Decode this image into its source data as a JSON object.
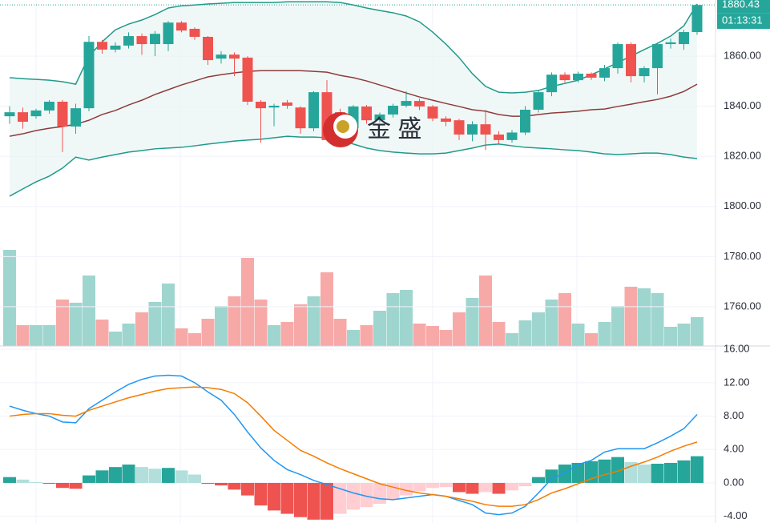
{
  "chart_data": [
    {
      "type": "candlestick",
      "ylim": [
        1744.3,
        1882.4
      ],
      "yticks": [
        {
          "value": 1760,
          "label": "1760.00"
        },
        {
          "value": 1780,
          "label": "1780.00"
        },
        {
          "value": 1800,
          "label": "1800.00"
        },
        {
          "value": 1820,
          "label": "1820.00"
        },
        {
          "value": 1840,
          "label": "1840.00"
        },
        {
          "value": 1860,
          "label": "1860.00"
        }
      ],
      "grid": true,
      "up_color": "#26a69a",
      "down_color": "#ef5350",
      "last_price": 1880.43,
      "countdown": "01:13:31",
      "watermark": "金 盛",
      "candles": {
        "open": [
          1836.0,
          1837.6,
          1836.0,
          1838.3,
          1841.8,
          1831.9,
          1839.2,
          1865.7,
          1862.6,
          1864.2,
          1868.0,
          1864.8,
          1864.8,
          1873.4,
          1870.9,
          1867.7,
          1859.0,
          1860.6,
          1859.4,
          1841.8,
          1839.5,
          1841.5,
          1839.5,
          1831.2,
          1845.6,
          1837.6,
          1831.2,
          1839.9,
          1834.4,
          1836.7,
          1840.2,
          1842.1,
          1839.9,
          1835.1,
          1834.4,
          1828.7,
          1832.8,
          1828.7,
          1826.5,
          1829.5,
          1838.6,
          1845.6,
          1852.6,
          1850.4,
          1853.0,
          1851.4,
          1855.2,
          1864.8,
          1852.0,
          1855.2,
          1864.8,
          1864.8,
          1869.6
        ],
        "high": [
          1840.0,
          1839.5,
          1839.0,
          1842.5,
          1842.5,
          1841.0,
          1868.0,
          1866.5,
          1865.5,
          1869.5,
          1869.0,
          1870.0,
          1874.0,
          1874.0,
          1871.5,
          1868.0,
          1862.0,
          1861.5,
          1860.0,
          1842.5,
          1841.0,
          1842.5,
          1840.0,
          1846.0,
          1850.4,
          1839.0,
          1840.5,
          1840.5,
          1837.5,
          1841.0,
          1846.0,
          1843.0,
          1840.5,
          1836.0,
          1835.0,
          1834.0,
          1838.6,
          1830.0,
          1830.5,
          1840.0,
          1846.5,
          1853.5,
          1853.5,
          1853.8,
          1853.5,
          1856.5,
          1865.5,
          1865.5,
          1856.0,
          1865.5,
          1867.0,
          1870.5,
          1880.6
        ],
        "low": [
          1833.0,
          1831.0,
          1835.0,
          1837.0,
          1821.7,
          1829.0,
          1838.0,
          1861.0,
          1861.5,
          1863.0,
          1860.5,
          1860.0,
          1862.0,
          1869.5,
          1866.5,
          1856.5,
          1857.0,
          1852.0,
          1840.5,
          1825.5,
          1832.0,
          1839.0,
          1829.0,
          1830.0,
          1826.0,
          1826.0,
          1830.0,
          1833.0,
          1833.5,
          1835.5,
          1839.5,
          1838.5,
          1834.0,
          1832.0,
          1826.5,
          1826.0,
          1822.5,
          1825.0,
          1825.5,
          1828.5,
          1837.5,
          1844.0,
          1849.5,
          1849.5,
          1850.5,
          1850.0,
          1853.0,
          1849.5,
          1849.5,
          1844.7,
          1863.0,
          1862.5,
          1868.5
        ],
        "close": [
          1837.6,
          1833.8,
          1838.3,
          1841.8,
          1831.9,
          1839.2,
          1865.7,
          1862.6,
          1864.2,
          1868.0,
          1864.8,
          1868.9,
          1873.4,
          1870.2,
          1867.7,
          1858.4,
          1860.6,
          1859.0,
          1841.8,
          1839.2,
          1840.2,
          1840.2,
          1831.2,
          1845.6,
          1826.5,
          1826.5,
          1839.9,
          1834.4,
          1836.7,
          1840.2,
          1842.1,
          1839.9,
          1835.1,
          1833.8,
          1828.7,
          1832.8,
          1828.7,
          1826.5,
          1829.5,
          1838.6,
          1845.6,
          1852.6,
          1850.4,
          1853.0,
          1851.4,
          1855.2,
          1864.8,
          1852.0,
          1855.2,
          1864.8,
          1865.5,
          1869.6,
          1880.4
        ]
      },
      "bands": {
        "color": "#1f9a8b",
        "middle_color": "#8e3b3b",
        "fill": "#e6f4f2",
        "upper": [
          1851.4,
          1851.0,
          1850.7,
          1850.4,
          1849.8,
          1848.8,
          1860.0,
          1865.7,
          1870.5,
          1872.8,
          1874.4,
          1876.6,
          1879.2,
          1880.1,
          1880.4,
          1880.8,
          1881.1,
          1881.4,
          1881.4,
          1881.4,
          1881.4,
          1881.7,
          1881.7,
          1881.7,
          1881.7,
          1881.4,
          1880.4,
          1879.2,
          1878.2,
          1877.3,
          1876.0,
          1873.7,
          1869.6,
          1864.8,
          1859.4,
          1853.0,
          1847.9,
          1845.6,
          1845.3,
          1845.6,
          1846.3,
          1847.9,
          1849.1,
          1850.4,
          1852.6,
          1854.9,
          1857.4,
          1860.0,
          1862.6,
          1865.1,
          1868.0,
          1872.1,
          1880.8
        ],
        "middle": [
          1828.0,
          1829.0,
          1830.3,
          1831.2,
          1831.9,
          1832.8,
          1834.4,
          1836.7,
          1838.3,
          1840.5,
          1842.4,
          1844.7,
          1846.6,
          1848.5,
          1850.1,
          1851.7,
          1852.6,
          1853.3,
          1853.9,
          1854.2,
          1854.2,
          1854.2,
          1854.2,
          1853.9,
          1853.6,
          1852.3,
          1851.4,
          1850.1,
          1848.5,
          1846.9,
          1845.3,
          1843.7,
          1842.4,
          1841.1,
          1839.9,
          1838.6,
          1838.0,
          1836.7,
          1836.0,
          1836.0,
          1836.7,
          1837.3,
          1837.6,
          1838.0,
          1838.6,
          1838.9,
          1839.9,
          1840.8,
          1841.8,
          1842.7,
          1844.0,
          1845.9,
          1848.8
        ],
        "lower": [
          1804.1,
          1807.0,
          1809.8,
          1812.1,
          1815.3,
          1819.7,
          1818.5,
          1819.7,
          1820.7,
          1821.7,
          1822.3,
          1823.0,
          1823.3,
          1823.6,
          1824.2,
          1824.9,
          1825.5,
          1826.1,
          1826.5,
          1826.8,
          1827.4,
          1828.0,
          1827.7,
          1827.7,
          1827.4,
          1826.8,
          1824.9,
          1823.3,
          1822.3,
          1821.7,
          1821.3,
          1821.0,
          1821.0,
          1821.3,
          1822.3,
          1823.3,
          1824.5,
          1824.9,
          1824.2,
          1823.6,
          1823.3,
          1823.0,
          1822.6,
          1822.3,
          1821.7,
          1821.0,
          1820.7,
          1821.0,
          1821.3,
          1821.3,
          1820.7,
          1819.7,
          1819.1
        ]
      }
    },
    {
      "type": "bar",
      "ylim": [
        0,
        432
      ],
      "up_color": "#9fd5cf",
      "down_color": "#f7a9a8",
      "values": [
        120,
        26,
        26,
        26,
        58,
        54,
        88,
        33,
        18,
        28,
        42,
        55,
        78,
        22,
        16,
        34,
        50,
        62,
        110,
        58,
        26,
        30,
        52,
        62,
        92,
        34,
        20,
        26,
        44,
        66,
        70,
        28,
        25,
        20,
        42,
        60,
        88,
        30,
        16,
        32,
        42,
        58,
        66,
        28,
        16,
        30,
        50,
        74,
        72,
        66,
        24,
        28,
        36
      ]
    },
    {
      "type": "macd",
      "ylim": [
        -4.8,
        16.4
      ],
      "yticks": [
        {
          "value": -4,
          "label": "-4.00"
        },
        {
          "value": 0,
          "label": "0.00"
        },
        {
          "value": 4,
          "label": "4.00"
        },
        {
          "value": 8,
          "label": "8.00"
        },
        {
          "value": 12,
          "label": "12.00"
        },
        {
          "value": 16,
          "label": "16.00"
        }
      ],
      "grid": true,
      "series": [
        {
          "color": "#2196f3",
          "values": [
            9.2,
            8.7,
            8.3,
            8.0,
            7.3,
            7.2,
            8.9,
            9.9,
            10.9,
            11.8,
            12.4,
            12.8,
            12.9,
            12.8,
            12.0,
            10.9,
            9.9,
            8.2,
            6.1,
            4.2,
            2.7,
            1.6,
            1.0,
            0.3,
            -0.2,
            -0.7,
            -1.2,
            -1.6,
            -1.9,
            -2.0,
            -1.8,
            -1.6,
            -1.4,
            -1.6,
            -2.1,
            -2.6,
            -3.6,
            -3.8,
            -3.6,
            -2.8,
            -1.2,
            0.5,
            1.2,
            2.2,
            2.7,
            3.7,
            4.1,
            4.1,
            4.1,
            4.8,
            5.6,
            6.5,
            8.2
          ]
        },
        {
          "color": "#f57c00",
          "values": [
            8.0,
            8.2,
            8.3,
            8.3,
            8.1,
            8.0,
            8.7,
            9.2,
            9.7,
            10.2,
            10.6,
            11.0,
            11.3,
            11.4,
            11.5,
            11.4,
            11.2,
            10.7,
            9.6,
            8.0,
            6.3,
            5.1,
            3.9,
            3.2,
            2.4,
            1.7,
            1.1,
            0.5,
            -0.1,
            -0.5,
            -0.9,
            -1.2,
            -1.4,
            -1.6,
            -1.9,
            -2.2,
            -2.6,
            -2.8,
            -2.8,
            -2.6,
            -2.0,
            -1.2,
            -0.7,
            -0.1,
            0.5,
            1.0,
            1.4,
            2.0,
            2.5,
            3.1,
            3.8,
            4.4,
            4.9
          ]
        }
      ],
      "histogram": {
        "colors": [
          "#26a69a",
          "#b2dfdb",
          "#ef5350",
          "#ffcdd2"
        ],
        "values": [
          0.7,
          0.4,
          0.1,
          -0.1,
          -0.6,
          -0.7,
          0.9,
          1.5,
          1.9,
          2.2,
          1.9,
          1.7,
          1.8,
          1.5,
          1.0,
          -0.1,
          -0.3,
          -0.8,
          -1.5,
          -2.7,
          -3.3,
          -3.7,
          -4.1,
          -4.4,
          -4.4,
          -3.7,
          -3.2,
          -2.9,
          -2.5,
          -2.0,
          -1.5,
          -1.0,
          -0.6,
          -0.5,
          -1.1,
          -1.3,
          -1.1,
          -1.3,
          -0.9,
          -0.4,
          0.7,
          1.6,
          2.2,
          2.4,
          2.6,
          2.8,
          3.1,
          2.5,
          2.2,
          2.3,
          2.4,
          2.7,
          3.2
        ]
      }
    }
  ]
}
